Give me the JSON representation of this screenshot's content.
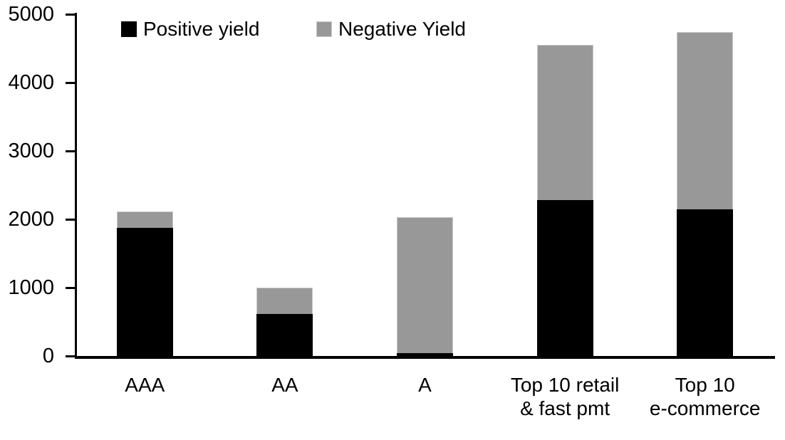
{
  "chart_data": {
    "type": "bar",
    "stacked": true,
    "title": "",
    "xlabel": "",
    "ylabel": "",
    "categories": [
      "AAA",
      "AA",
      "A",
      "Top 10 retail\n& fast pmt",
      "Top 10\ne-commerce"
    ],
    "series": [
      {
        "name": "Positive yield",
        "color": "#000000",
        "values": [
          1880,
          610,
          40,
          2280,
          2150
        ]
      },
      {
        "name": "Negative Yield",
        "color": "#989898",
        "values": [
          230,
          390,
          1990,
          2270,
          2590
        ]
      }
    ],
    "ylim": [
      0,
      5000
    ],
    "yticks": [
      0,
      1000,
      2000,
      3000,
      4000,
      5000
    ],
    "grid": false,
    "legend_position": "top"
  },
  "colors": {
    "background": "#ffffff",
    "axis": "#000000",
    "positive_series": "#000000",
    "negative_series": "#989898"
  }
}
